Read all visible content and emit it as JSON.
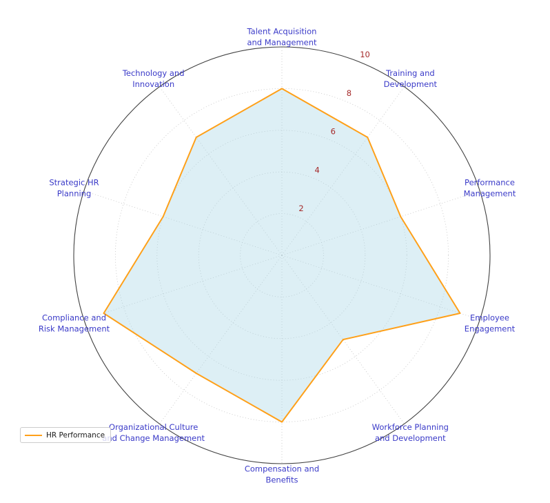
{
  "chart_data": {
    "type": "radar",
    "title": "",
    "categories": [
      "Talent Acquisition and Management",
      "Training and Development",
      "Performance Management",
      "Employee Engagement",
      "Workforce Planning and Development",
      "Compensation and Benefits",
      "Organizational Culture and Change Management",
      "Compliance and Risk Management",
      "Strategic HR Planning",
      "Technology and Innovation"
    ],
    "category_lines": [
      [
        "Talent Acquisition",
        "and Management"
      ],
      [
        "Training and",
        "Development"
      ],
      [
        "Performance",
        "Management"
      ],
      [
        "Employee",
        "Engagement"
      ],
      [
        "Workforce Planning",
        "and Development"
      ],
      [
        "Compensation and",
        "Benefits"
      ],
      [
        "Organizational Culture",
        "and Change Management"
      ],
      [
        "Compliance and",
        "Risk Management"
      ],
      [
        "Strategic HR",
        "Planning"
      ],
      [
        "Technology and",
        "Innovation"
      ]
    ],
    "series": [
      {
        "name": "HR Performance",
        "values": [
          8,
          7,
          6,
          9,
          5,
          8,
          7,
          9,
          6,
          7
        ]
      }
    ],
    "radial_ticks": [
      2,
      4,
      6,
      8,
      10
    ],
    "rmax": 10,
    "grid": true,
    "legend_position": "lower-left",
    "colors": {
      "line": "#ffa019",
      "fill": "rgba(173,216,230,0.42)",
      "category_label": "#3a3ac8",
      "tick_label": "#a52a2a",
      "grid": "#c0c0c0",
      "outer_circle": "#404040",
      "legend_border": "#cccccc",
      "legend_text": "#1a1a1a"
    }
  },
  "legend": {
    "label": "HR Performance"
  }
}
